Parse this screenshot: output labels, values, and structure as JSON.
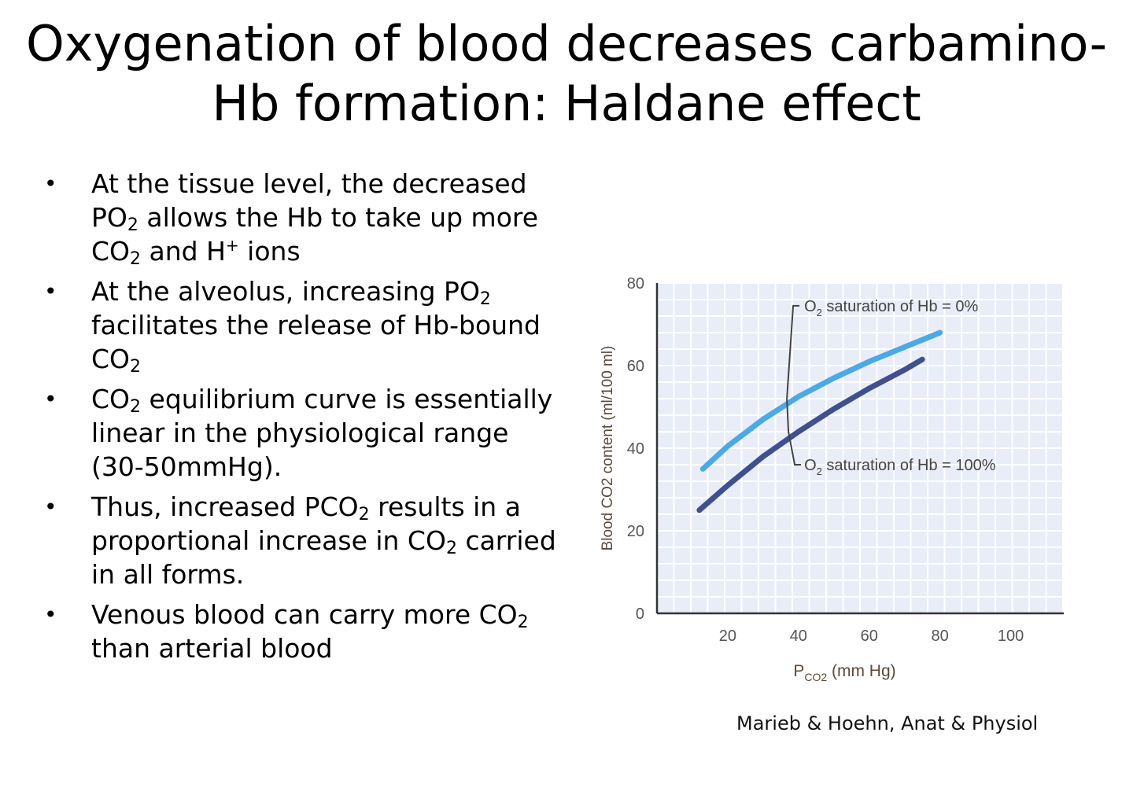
{
  "slide": {
    "title_line1": "Oxygenation of blood decreases carbamino-",
    "title_line2": "Hb formation: Haldane effect",
    "citation": "Marieb & Hoehn, Anat & Physiol"
  },
  "bullets": [
    {
      "parts": [
        [
          "t",
          "At the tissue level, the decreased PO"
        ],
        [
          "sub",
          "2"
        ],
        [
          "t",
          " allows the Hb to take up more CO"
        ],
        [
          "sub",
          "2"
        ],
        [
          "t",
          " and H"
        ],
        [
          "sup",
          "+"
        ],
        [
          "t",
          " ions"
        ]
      ]
    },
    {
      "parts": [
        [
          "t",
          "At the alveolus, increasing PO"
        ],
        [
          "sub",
          "2"
        ],
        [
          "t",
          " facilitates the release of Hb-bound CO"
        ],
        [
          "sub",
          "2"
        ]
      ]
    },
    {
      "parts": [
        [
          "t",
          "CO"
        ],
        [
          "sub",
          "2"
        ],
        [
          "t",
          " equilibrium curve is essentially linear in the physiological range (30-50mmHg)."
        ]
      ]
    },
    {
      "parts": [
        [
          "t",
          "Thus, increased PCO"
        ],
        [
          "sub",
          "2"
        ],
        [
          "t",
          " results in a proportional increase in CO"
        ],
        [
          "sub",
          "2"
        ],
        [
          "t",
          " carried in all forms."
        ]
      ]
    },
    {
      "parts": [
        [
          "t",
          "Venous blood can carry  more CO"
        ],
        [
          "sub",
          "2"
        ],
        [
          "t",
          " than arterial blood"
        ]
      ]
    }
  ],
  "chart_data": {
    "type": "line",
    "xlabel": "P",
    "xlabel_sub": "CO2",
    "xlabel_unit": " (mm Hg)",
    "ylabel": "Blood CO2 content (ml/100 ml)",
    "xlim": [
      0,
      115
    ],
    "ylim": [
      0,
      80
    ],
    "xticks": [
      20,
      40,
      60,
      80,
      100
    ],
    "yticks": [
      0,
      20,
      40,
      60,
      80
    ],
    "grid": true,
    "series": [
      {
        "name": "O2 saturation of Hb = 0%",
        "label": "O",
        "label_sub": "2",
        "label_rest": " saturation of Hb = 0%",
        "color": "#4aa9e6",
        "x": [
          13,
          20,
          30,
          40,
          50,
          60,
          70,
          80
        ],
        "y": [
          35,
          40.5,
          47,
          52.5,
          57,
          61,
          64.5,
          68
        ]
      },
      {
        "name": "O2 saturation of Hb = 100%",
        "label": "O",
        "label_sub": "2",
        "label_rest": " saturation of Hb = 100%",
        "color": "#3f4f8f",
        "x": [
          12,
          20,
          30,
          40,
          50,
          60,
          70,
          75
        ],
        "y": [
          25,
          31,
          38,
          44,
          49.5,
          54.5,
          59,
          61.5
        ]
      }
    ],
    "background": "#e8edf8",
    "grid_color": "#ffffff"
  }
}
